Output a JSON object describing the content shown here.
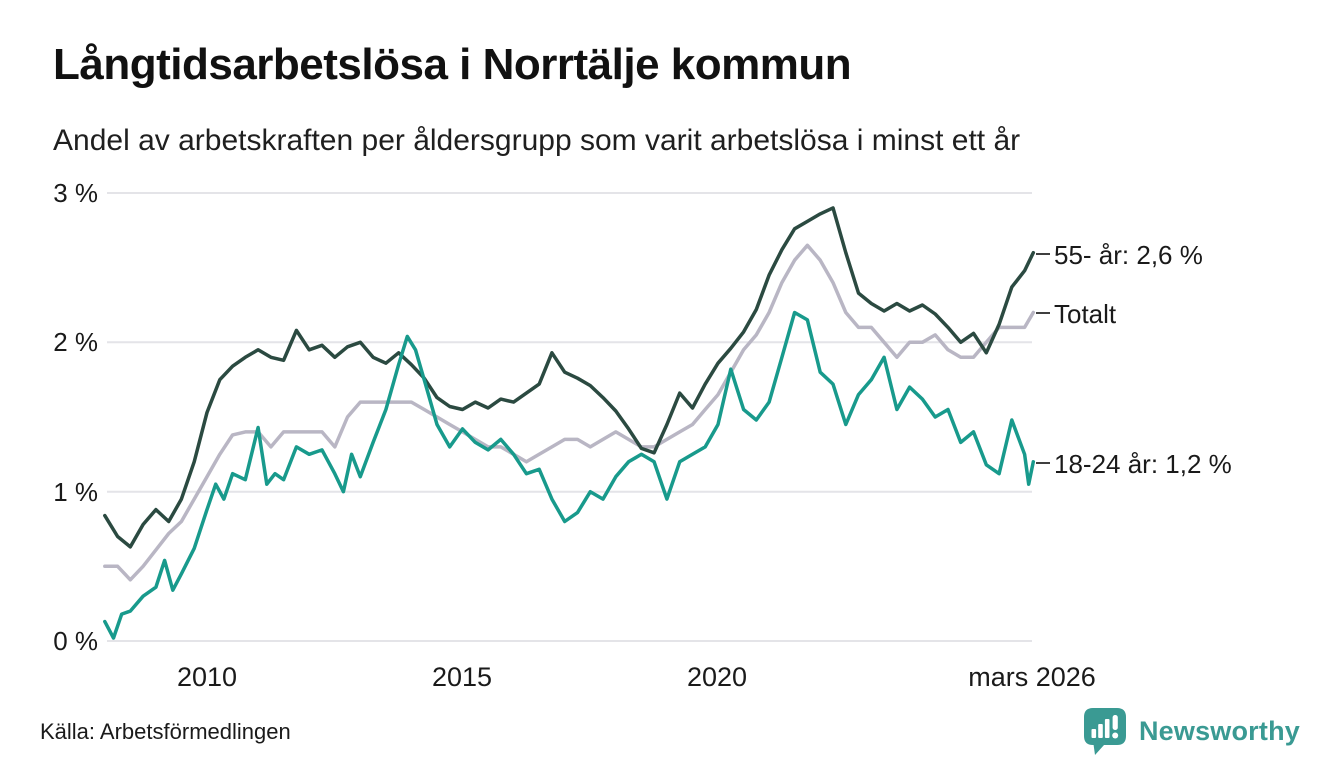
{
  "header": {
    "title": "Långtidsarbetslösa i Norrtälje kommun",
    "subtitle": "Andel av arbetskraften per åldersgrupp som varit arbetslösa i minst ett år"
  },
  "footer": {
    "source": "Källa: Arbetsförmedlingen",
    "brand": "Newsworthy"
  },
  "colors": {
    "series_55": "#2b4a41",
    "series_totalt": "#b9b6c4",
    "series_18_24": "#189a8c",
    "brand_teal": "#3a9a93",
    "gridline": "#e4e4e8",
    "text": "#1a1a1a"
  },
  "chart_data": {
    "type": "line",
    "title": "Långtidsarbetslösa i Norrtälje kommun",
    "subtitle": "Andel av arbetskraften per åldersgrupp som varit arbetslösa i minst ett år",
    "unit": "% av arbetskraften",
    "latest_period": "mars 2026",
    "grid": "horizontal",
    "legend_position": "right-end-labels",
    "x_axis": {
      "ticks": [
        "2010",
        "2015",
        "2020",
        "mars 2026"
      ],
      "tick_years": [
        2010,
        2015,
        2020,
        2026.17
      ],
      "range": [
        2008.0,
        2026.25
      ]
    },
    "y_axis": {
      "ticks": [
        "3 %",
        "2 %",
        "1 %",
        "0 %"
      ],
      "tick_values": [
        3,
        2,
        1,
        0
      ],
      "range": [
        0,
        3
      ]
    },
    "series": [
      {
        "id": "55",
        "name": "55- år",
        "end_label": "55- år: 2,6 %",
        "latest_value": 2.6,
        "color": "#2b4a41",
        "points": [
          [
            2008.0,
            0.84
          ],
          [
            2008.25,
            0.7
          ],
          [
            2008.5,
            0.63
          ],
          [
            2008.75,
            0.78
          ],
          [
            2009.0,
            0.88
          ],
          [
            2009.25,
            0.8
          ],
          [
            2009.5,
            0.95
          ],
          [
            2009.75,
            1.2
          ],
          [
            2010.0,
            1.53
          ],
          [
            2010.25,
            1.75
          ],
          [
            2010.5,
            1.84
          ],
          [
            2010.75,
            1.9
          ],
          [
            2011.0,
            1.95
          ],
          [
            2011.25,
            1.9
          ],
          [
            2011.5,
            1.88
          ],
          [
            2011.75,
            2.08
          ],
          [
            2012.0,
            1.95
          ],
          [
            2012.25,
            1.98
          ],
          [
            2012.5,
            1.9
          ],
          [
            2012.75,
            1.97
          ],
          [
            2013.0,
            2.0
          ],
          [
            2013.25,
            1.9
          ],
          [
            2013.5,
            1.86
          ],
          [
            2013.75,
            1.93
          ],
          [
            2014.0,
            1.85
          ],
          [
            2014.25,
            1.76
          ],
          [
            2014.5,
            1.63
          ],
          [
            2014.75,
            1.57
          ],
          [
            2015.0,
            1.55
          ],
          [
            2015.25,
            1.6
          ],
          [
            2015.5,
            1.56
          ],
          [
            2015.75,
            1.62
          ],
          [
            2016.0,
            1.6
          ],
          [
            2016.25,
            1.66
          ],
          [
            2016.5,
            1.72
          ],
          [
            2016.75,
            1.93
          ],
          [
            2017.0,
            1.8
          ],
          [
            2017.25,
            1.76
          ],
          [
            2017.5,
            1.71
          ],
          [
            2017.75,
            1.63
          ],
          [
            2018.0,
            1.54
          ],
          [
            2018.25,
            1.42
          ],
          [
            2018.5,
            1.29
          ],
          [
            2018.75,
            1.26
          ],
          [
            2019.0,
            1.45
          ],
          [
            2019.25,
            1.66
          ],
          [
            2019.5,
            1.56
          ],
          [
            2019.75,
            1.72
          ],
          [
            2020.0,
            1.86
          ],
          [
            2020.25,
            1.96
          ],
          [
            2020.5,
            2.07
          ],
          [
            2020.75,
            2.22
          ],
          [
            2021.0,
            2.45
          ],
          [
            2021.25,
            2.62
          ],
          [
            2021.5,
            2.76
          ],
          [
            2021.75,
            2.81
          ],
          [
            2022.0,
            2.86
          ],
          [
            2022.25,
            2.9
          ],
          [
            2022.5,
            2.6
          ],
          [
            2022.75,
            2.33
          ],
          [
            2023.0,
            2.26
          ],
          [
            2023.25,
            2.21
          ],
          [
            2023.5,
            2.26
          ],
          [
            2023.75,
            2.21
          ],
          [
            2024.0,
            2.25
          ],
          [
            2024.25,
            2.19
          ],
          [
            2024.5,
            2.1
          ],
          [
            2024.75,
            2.0
          ],
          [
            2025.0,
            2.06
          ],
          [
            2025.25,
            1.93
          ],
          [
            2025.5,
            2.12
          ],
          [
            2025.75,
            2.37
          ],
          [
            2026.0,
            2.48
          ],
          [
            2026.17,
            2.6
          ]
        ]
      },
      {
        "id": "totalt",
        "name": "Totalt",
        "end_label": "Totalt",
        "latest_value": 2.2,
        "color": "#b9b6c4",
        "points": [
          [
            2008.0,
            0.5
          ],
          [
            2008.25,
            0.5
          ],
          [
            2008.5,
            0.41
          ],
          [
            2008.75,
            0.5
          ],
          [
            2009.0,
            0.61
          ],
          [
            2009.25,
            0.72
          ],
          [
            2009.5,
            0.8
          ],
          [
            2009.75,
            0.95
          ],
          [
            2010.0,
            1.1
          ],
          [
            2010.25,
            1.25
          ],
          [
            2010.5,
            1.38
          ],
          [
            2010.75,
            1.4
          ],
          [
            2011.0,
            1.4
          ],
          [
            2011.25,
            1.3
          ],
          [
            2011.5,
            1.4
          ],
          [
            2011.75,
            1.4
          ],
          [
            2012.0,
            1.4
          ],
          [
            2012.25,
            1.4
          ],
          [
            2012.5,
            1.3
          ],
          [
            2012.75,
            1.5
          ],
          [
            2013.0,
            1.6
          ],
          [
            2013.25,
            1.6
          ],
          [
            2013.5,
            1.6
          ],
          [
            2013.75,
            1.6
          ],
          [
            2014.0,
            1.6
          ],
          [
            2014.25,
            1.55
          ],
          [
            2014.5,
            1.5
          ],
          [
            2014.75,
            1.45
          ],
          [
            2015.0,
            1.4
          ],
          [
            2015.25,
            1.35
          ],
          [
            2015.5,
            1.3
          ],
          [
            2015.75,
            1.3
          ],
          [
            2016.0,
            1.25
          ],
          [
            2016.25,
            1.2
          ],
          [
            2016.5,
            1.25
          ],
          [
            2016.75,
            1.3
          ],
          [
            2017.0,
            1.35
          ],
          [
            2017.25,
            1.35
          ],
          [
            2017.5,
            1.3
          ],
          [
            2017.75,
            1.35
          ],
          [
            2018.0,
            1.4
          ],
          [
            2018.25,
            1.35
          ],
          [
            2018.5,
            1.3
          ],
          [
            2018.75,
            1.3
          ],
          [
            2019.0,
            1.35
          ],
          [
            2019.25,
            1.4
          ],
          [
            2019.5,
            1.45
          ],
          [
            2019.75,
            1.55
          ],
          [
            2020.0,
            1.65
          ],
          [
            2020.25,
            1.8
          ],
          [
            2020.5,
            1.95
          ],
          [
            2020.75,
            2.05
          ],
          [
            2021.0,
            2.2
          ],
          [
            2021.25,
            2.4
          ],
          [
            2021.5,
            2.55
          ],
          [
            2021.75,
            2.65
          ],
          [
            2022.0,
            2.55
          ],
          [
            2022.25,
            2.4
          ],
          [
            2022.5,
            2.2
          ],
          [
            2022.75,
            2.1
          ],
          [
            2023.0,
            2.1
          ],
          [
            2023.25,
            2.0
          ],
          [
            2023.5,
            1.9
          ],
          [
            2023.75,
            2.0
          ],
          [
            2024.0,
            2.0
          ],
          [
            2024.25,
            2.05
          ],
          [
            2024.5,
            1.95
          ],
          [
            2024.75,
            1.9
          ],
          [
            2025.0,
            1.9
          ],
          [
            2025.25,
            2.0
          ],
          [
            2025.5,
            2.1
          ],
          [
            2025.75,
            2.1
          ],
          [
            2026.0,
            2.1
          ],
          [
            2026.17,
            2.2
          ]
        ]
      },
      {
        "id": "18-24",
        "name": "18-24 år",
        "end_label": "18-24 år: 1,2 %",
        "latest_value": 1.2,
        "color": "#189a8c",
        "points": [
          [
            2008.0,
            0.13
          ],
          [
            2008.17,
            0.02
          ],
          [
            2008.33,
            0.18
          ],
          [
            2008.5,
            0.2
          ],
          [
            2008.75,
            0.3
          ],
          [
            2009.0,
            0.36
          ],
          [
            2009.17,
            0.54
          ],
          [
            2009.33,
            0.34
          ],
          [
            2009.5,
            0.45
          ],
          [
            2009.75,
            0.62
          ],
          [
            2010.0,
            0.88
          ],
          [
            2010.17,
            1.05
          ],
          [
            2010.33,
            0.95
          ],
          [
            2010.5,
            1.12
          ],
          [
            2010.75,
            1.08
          ],
          [
            2011.0,
            1.43
          ],
          [
            2011.17,
            1.05
          ],
          [
            2011.33,
            1.12
          ],
          [
            2011.5,
            1.08
          ],
          [
            2011.75,
            1.3
          ],
          [
            2012.0,
            1.25
          ],
          [
            2012.25,
            1.28
          ],
          [
            2012.5,
            1.12
          ],
          [
            2012.67,
            1.0
          ],
          [
            2012.83,
            1.25
          ],
          [
            2013.0,
            1.1
          ],
          [
            2013.25,
            1.33
          ],
          [
            2013.5,
            1.55
          ],
          [
            2013.75,
            1.85
          ],
          [
            2013.92,
            2.04
          ],
          [
            2014.08,
            1.95
          ],
          [
            2014.25,
            1.75
          ],
          [
            2014.5,
            1.45
          ],
          [
            2014.75,
            1.3
          ],
          [
            2015.0,
            1.42
          ],
          [
            2015.25,
            1.33
          ],
          [
            2015.5,
            1.28
          ],
          [
            2015.75,
            1.35
          ],
          [
            2016.0,
            1.25
          ],
          [
            2016.25,
            1.12
          ],
          [
            2016.5,
            1.15
          ],
          [
            2016.75,
            0.95
          ],
          [
            2017.0,
            0.8
          ],
          [
            2017.25,
            0.86
          ],
          [
            2017.5,
            1.0
          ],
          [
            2017.75,
            0.95
          ],
          [
            2018.0,
            1.1
          ],
          [
            2018.25,
            1.2
          ],
          [
            2018.5,
            1.25
          ],
          [
            2018.75,
            1.2
          ],
          [
            2019.0,
            0.95
          ],
          [
            2019.25,
            1.2
          ],
          [
            2019.5,
            1.25
          ],
          [
            2019.75,
            1.3
          ],
          [
            2020.0,
            1.45
          ],
          [
            2020.25,
            1.82
          ],
          [
            2020.5,
            1.55
          ],
          [
            2020.75,
            1.48
          ],
          [
            2021.0,
            1.6
          ],
          [
            2021.25,
            1.9
          ],
          [
            2021.5,
            2.2
          ],
          [
            2021.75,
            2.15
          ],
          [
            2022.0,
            1.8
          ],
          [
            2022.25,
            1.72
          ],
          [
            2022.5,
            1.45
          ],
          [
            2022.75,
            1.65
          ],
          [
            2023.0,
            1.75
          ],
          [
            2023.25,
            1.9
          ],
          [
            2023.5,
            1.55
          ],
          [
            2023.75,
            1.7
          ],
          [
            2024.0,
            1.62
          ],
          [
            2024.25,
            1.5
          ],
          [
            2024.5,
            1.55
          ],
          [
            2024.75,
            1.33
          ],
          [
            2025.0,
            1.4
          ],
          [
            2025.25,
            1.18
          ],
          [
            2025.5,
            1.12
          ],
          [
            2025.75,
            1.48
          ],
          [
            2026.0,
            1.25
          ],
          [
            2026.08,
            1.05
          ],
          [
            2026.17,
            1.2
          ]
        ]
      }
    ]
  }
}
